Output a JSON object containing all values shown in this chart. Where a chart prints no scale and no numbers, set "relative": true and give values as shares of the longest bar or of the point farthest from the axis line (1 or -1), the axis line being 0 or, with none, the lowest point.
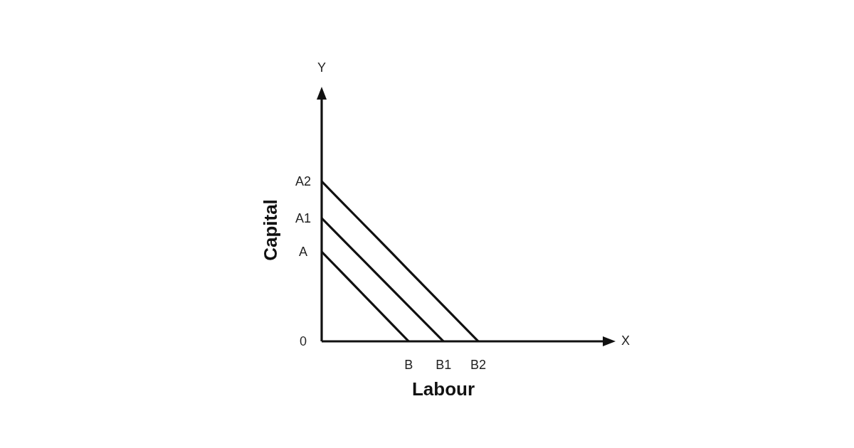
{
  "chart_data": {
    "type": "line",
    "relative": true,
    "xlabel": "Labour",
    "ylabel": "Capital",
    "marker": "none",
    "line_style": "solid",
    "annotations": [
      "Y",
      "X",
      "0",
      "A",
      "A1",
      "A2"
    ],
    "categories": [
      null,
      null,
      null,
      null,
      null,
      "B",
      null,
      "B1",
      null,
      "B2",
      null,
      null,
      null,
      null,
      null,
      null,
      null
    ],
    "series": [
      {
        "color": "#111111",
        "values": [
          0.56,
          0.448,
          0.336,
          0.224,
          0.112,
          0,
          null,
          null,
          null,
          null,
          null,
          null,
          null,
          null,
          null,
          null,
          null
        ]
      },
      {
        "color": "#111111",
        "values": [
          0.77,
          0.66,
          0.55,
          0.44,
          0.33,
          0.22,
          0.11,
          0,
          null,
          null,
          null,
          null,
          null,
          null,
          null,
          null,
          null
        ]
      },
      {
        "color": "#111111",
        "values": [
          1,
          0.889,
          0.778,
          0.667,
          0.556,
          0.444,
          0.333,
          0.222,
          0.111,
          0,
          null,
          null,
          null,
          null,
          null,
          null,
          null
        ]
      }
    ]
  }
}
